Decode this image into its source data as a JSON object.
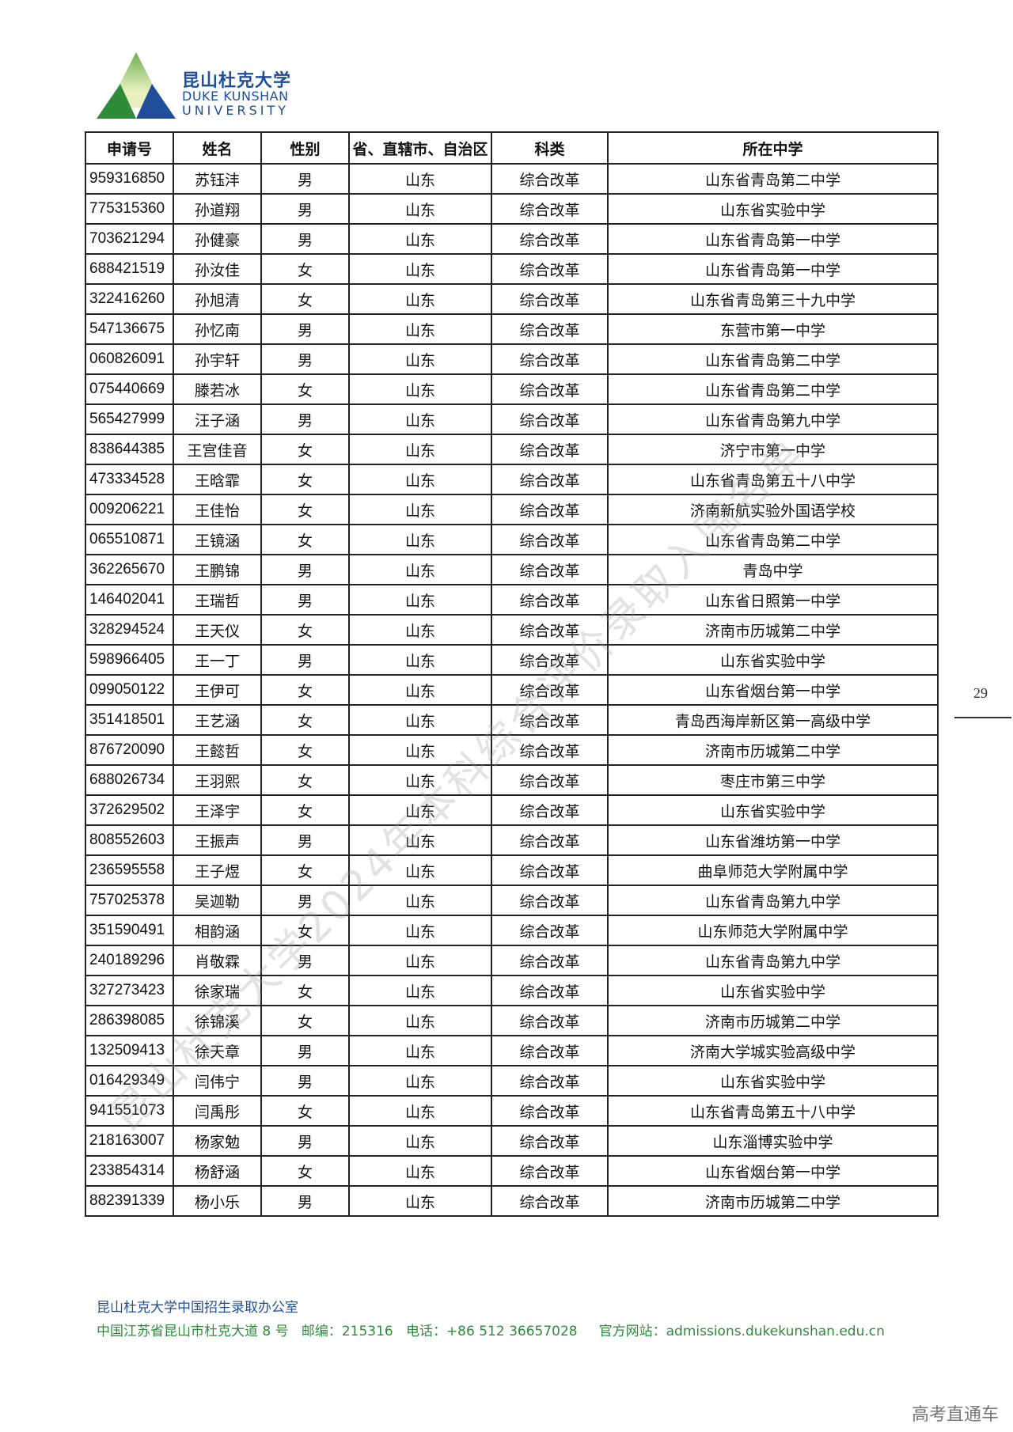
{
  "logo": {
    "cn": "昆山杜克大学",
    "en_line1": "DUKE KUNSHAN",
    "en_line2": "UNIVERSITY"
  },
  "table": {
    "headers": [
      "申请号",
      "姓名",
      "性别",
      "省、直辖市、自治区",
      "科类",
      "所在中学"
    ],
    "rows": [
      [
        "959316850",
        "苏钰沣",
        "男",
        "山东",
        "综合改革",
        "山东省青岛第二中学"
      ],
      [
        "775315360",
        "孙道翔",
        "男",
        "山东",
        "综合改革",
        "山东省实验中学"
      ],
      [
        "703621294",
        "孙健豪",
        "男",
        "山东",
        "综合改革",
        "山东省青岛第一中学"
      ],
      [
        "688421519",
        "孙汝佳",
        "女",
        "山东",
        "综合改革",
        "山东省青岛第一中学"
      ],
      [
        "322416260",
        "孙旭清",
        "女",
        "山东",
        "综合改革",
        "山东省青岛第三十九中学"
      ],
      [
        "547136675",
        "孙忆南",
        "男",
        "山东",
        "综合改革",
        "东营市第一中学"
      ],
      [
        "060826091",
        "孙宇轩",
        "男",
        "山东",
        "综合改革",
        "山东省青岛第二中学"
      ],
      [
        "075440669",
        "滕若冰",
        "女",
        "山东",
        "综合改革",
        "山东省青岛第二中学"
      ],
      [
        "565427999",
        "汪子涵",
        "男",
        "山东",
        "综合改革",
        "山东省青岛第九中学"
      ],
      [
        "838644385",
        "王宫佳音",
        "女",
        "山东",
        "综合改革",
        "济宁市第一中学"
      ],
      [
        "473334528",
        "王晗霏",
        "女",
        "山东",
        "综合改革",
        "山东省青岛第五十八中学"
      ],
      [
        "009206221",
        "王佳怡",
        "女",
        "山东",
        "综合改革",
        "济南新航实验外国语学校"
      ],
      [
        "065510871",
        "王镜涵",
        "女",
        "山东",
        "综合改革",
        "山东省青岛第二中学"
      ],
      [
        "362265670",
        "王鹏锦",
        "男",
        "山东",
        "综合改革",
        "青岛中学"
      ],
      [
        "146402041",
        "王瑞哲",
        "男",
        "山东",
        "综合改革",
        "山东省日照第一中学"
      ],
      [
        "328294524",
        "王天仪",
        "女",
        "山东",
        "综合改革",
        "济南市历城第二中学"
      ],
      [
        "598966405",
        "王一丁",
        "男",
        "山东",
        "综合改革",
        "山东省实验中学"
      ],
      [
        "099050122",
        "王伊可",
        "女",
        "山东",
        "综合改革",
        "山东省烟台第一中学"
      ],
      [
        "351418501",
        "王艺涵",
        "女",
        "山东",
        "综合改革",
        "青岛西海岸新区第一高级中学"
      ],
      [
        "876720090",
        "王懿哲",
        "女",
        "山东",
        "综合改革",
        "济南市历城第二中学"
      ],
      [
        "688026734",
        "王羽熙",
        "女",
        "山东",
        "综合改革",
        "枣庄市第三中学"
      ],
      [
        "372629502",
        "王泽宇",
        "女",
        "山东",
        "综合改革",
        "山东省实验中学"
      ],
      [
        "808552603",
        "王振声",
        "男",
        "山东",
        "综合改革",
        "山东省潍坊第一中学"
      ],
      [
        "236595558",
        "王子煜",
        "女",
        "山东",
        "综合改革",
        "曲阜师范大学附属中学"
      ],
      [
        "757025378",
        "吴迦勒",
        "男",
        "山东",
        "综合改革",
        "山东省青岛第九中学"
      ],
      [
        "351590491",
        "相韵涵",
        "女",
        "山东",
        "综合改革",
        "山东师范大学附属中学"
      ],
      [
        "240189296",
        "肖敬霖",
        "男",
        "山东",
        "综合改革",
        "山东省青岛第九中学"
      ],
      [
        "327273423",
        "徐家瑞",
        "女",
        "山东",
        "综合改革",
        "山东省实验中学"
      ],
      [
        "286398085",
        "徐锦溪",
        "女",
        "山东",
        "综合改革",
        "济南市历城第二中学"
      ],
      [
        "132509413",
        "徐天章",
        "男",
        "山东",
        "综合改革",
        "济南大学城实验高级中学"
      ],
      [
        "016429349",
        "闫伟宁",
        "男",
        "山东",
        "综合改革",
        "山东省实验中学"
      ],
      [
        "941551073",
        "闫禹彤",
        "女",
        "山东",
        "综合改革",
        "山东省青岛第五十八中学"
      ],
      [
        "218163007",
        "杨家勉",
        "男",
        "山东",
        "综合改革",
        "山东淄博实验中学"
      ],
      [
        "233854314",
        "杨舒涵",
        "女",
        "山东",
        "综合改革",
        "山东省烟台第一中学"
      ],
      [
        "882391339",
        "杨小乐",
        "男",
        "山东",
        "综合改革",
        "济南市历城第二中学"
      ]
    ]
  },
  "footer": {
    "office": "昆山杜克大学中国招生录取办公室",
    "contact": "中国江苏省昆山市杜克大道 8 号   邮编：215316   电话：+86 512 36657028     官方网站：admissions.dukekunshan.edu.cn"
  },
  "page_number": "29",
  "watermark": "昆山杜克大学2024年本科综合评价录取入围名单",
  "brand": "高考直通车",
  "colors": {
    "brand_blue": "#1f4e9a",
    "brand_green": "#2e8b3a"
  }
}
